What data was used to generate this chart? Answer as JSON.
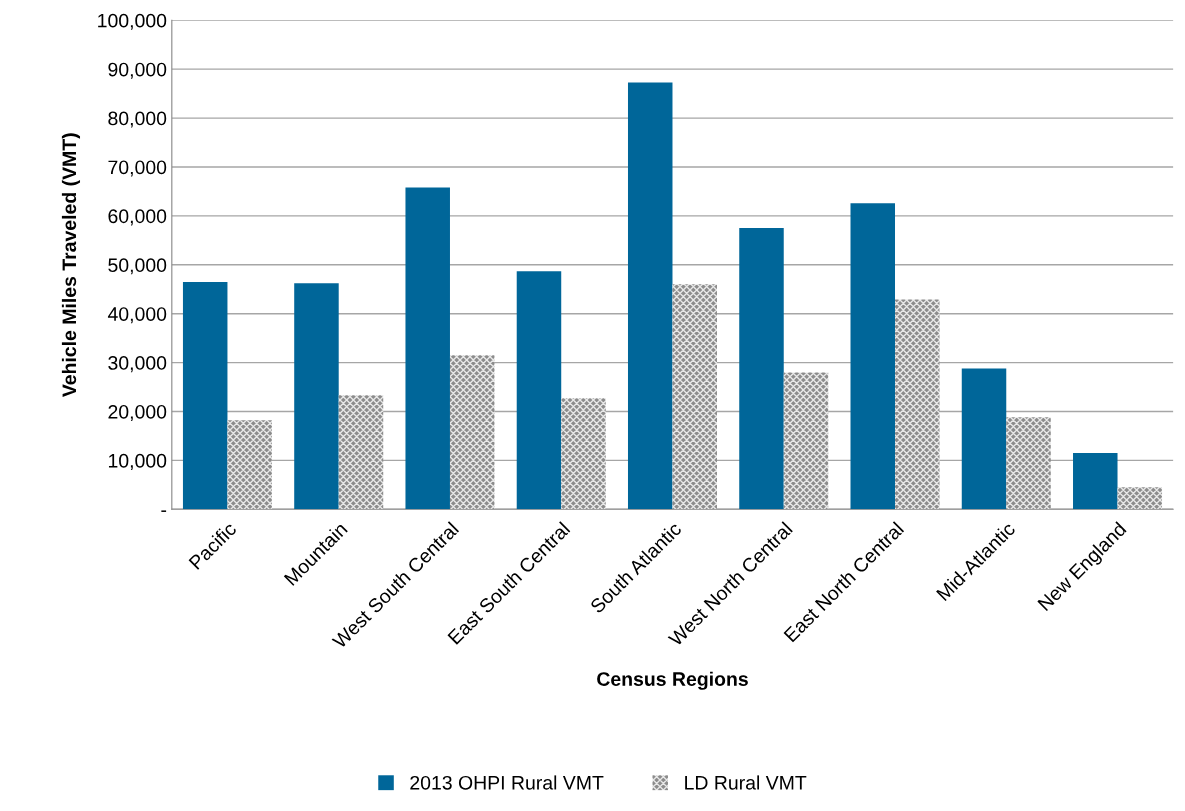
{
  "chart_data": {
    "type": "bar",
    "xlabel": "Census Regions",
    "ylabel": "Vehicle Miles Traveled (VMT)",
    "categories": [
      "Pacific",
      "Mountain",
      "West South Central",
      "East South Central",
      "South Atlantic",
      "West North Central",
      "East North Central",
      "Mid-Atlantic",
      "New England"
    ],
    "series": [
      {
        "name": "2013 OHPI Rural VMT",
        "color": "#006699",
        "values": [
          46500,
          46200,
          65800,
          48700,
          87300,
          57500,
          62600,
          28800,
          11500
        ]
      },
      {
        "name": "LD Rural VMT",
        "color": "#8c8c8c",
        "values": [
          18200,
          23300,
          31500,
          22700,
          46000,
          28000,
          42900,
          18800,
          4500
        ]
      }
    ],
    "ylim": [
      0,
      100000
    ],
    "yticks": [
      {
        "value": 0,
        "label": "-"
      },
      {
        "value": 10000,
        "label": "10,000"
      },
      {
        "value": 20000,
        "label": "20,000"
      },
      {
        "value": 30000,
        "label": "30,000"
      },
      {
        "value": 40000,
        "label": "40,000"
      },
      {
        "value": 50000,
        "label": "50,000"
      },
      {
        "value": 60000,
        "label": "60,000"
      },
      {
        "value": 70000,
        "label": "70,000"
      },
      {
        "value": 80000,
        "label": "80,000"
      },
      {
        "value": 90000,
        "label": "90,000"
      },
      {
        "value": 100000,
        "label": "100,000"
      }
    ],
    "grid": "y",
    "legend": "bottom"
  }
}
